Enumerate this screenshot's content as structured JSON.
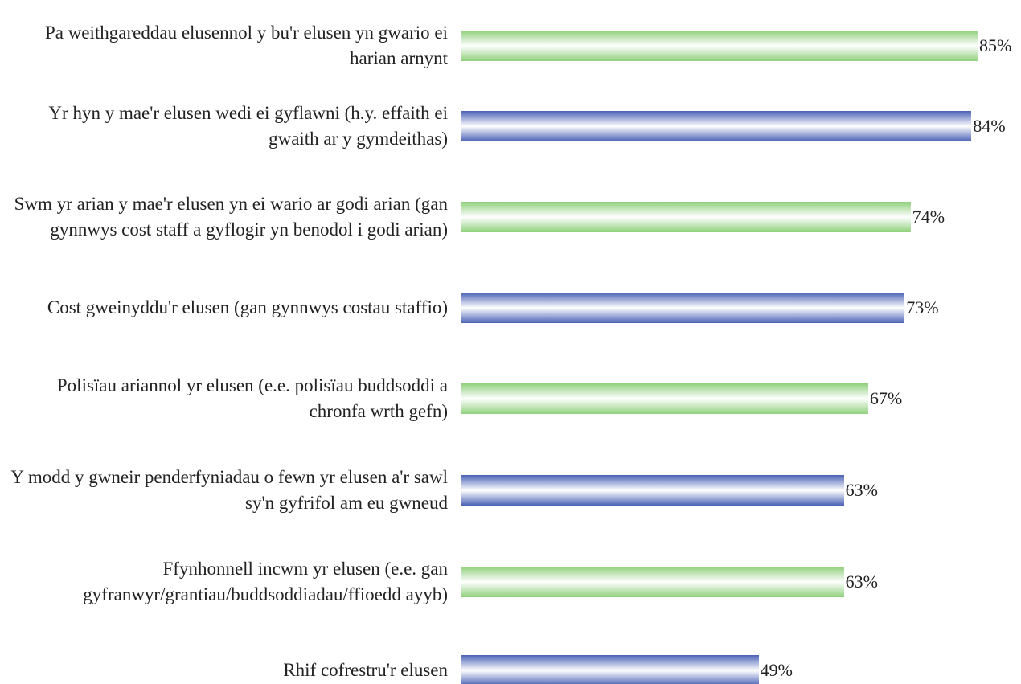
{
  "chart_data": {
    "type": "bar",
    "orientation": "horizontal",
    "categories": [
      "Pa weithgareddau elusennol y bu'r elusen yn gwario ei harian arnynt",
      "Yr hyn y mae'r elusen wedi ei gyflawni (h.y. effaith ei gwaith ar y gymdeithas)",
      "Swm yr arian y mae'r elusen yn ei wario ar godi arian (gan gynnwys cost staff a gyflogir yn benodol i godi arian)",
      "Cost gweinyddu'r elusen (gan gynnwys costau staffio)",
      "Polisïau ariannol yr elusen (e.e. polisïau buddsoddi a chronfa wrth gefn)",
      "Y modd y gwneir penderfyniadau o fewn yr elusen a'r sawl sy'n gyfrifol am eu gwneud",
      "Ffynhonnell incwm yr elusen (e.e. gan gyfranwyr/grantiau/buddsoddiadau/ffioedd ayyb)",
      "Rhif cofrestru'r elusen"
    ],
    "values": [
      85,
      84,
      74,
      73,
      67,
      63,
      63,
      49
    ],
    "value_labels": [
      "85%",
      "84%",
      "74%",
      "73%",
      "67%",
      "63%",
      "63%",
      "49%"
    ],
    "colors": [
      "#8fd07c",
      "#4a62b4",
      "#8fd07c",
      "#4a62b4",
      "#8fd07c",
      "#4a62b4",
      "#8fd07c",
      "#4a62b4"
    ]
  }
}
